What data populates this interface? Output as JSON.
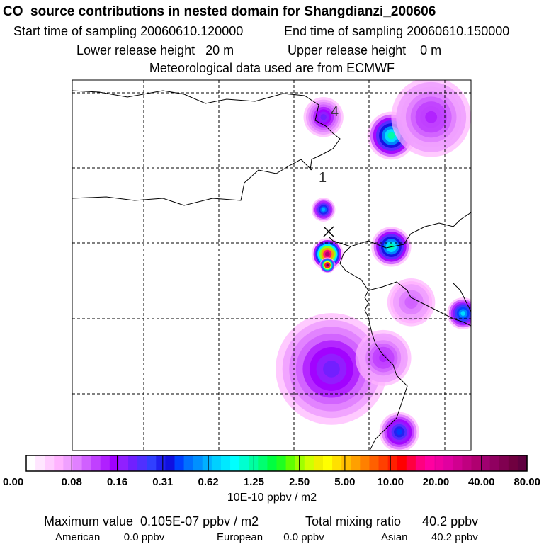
{
  "header": {
    "title": "CO  source contributions in nested domain for Shangdianzi_200606",
    "start_time": "Start time of sampling 20060610.120000",
    "end_time": "End time of sampling 20060610.150000",
    "lower_height": "Lower release height   20 m",
    "upper_height": "Upper release height    0 m",
    "met_source": "Meteorological data used are from ECMWF"
  },
  "chart_data": {
    "type": "heatmap",
    "title": "CO  source contributions in nested domain for Shangdianzi_200606",
    "map_labels": [
      "4",
      "1"
    ],
    "colorbar": {
      "tick_labels": [
        "0.00",
        "0.08",
        "0.16",
        "0.31",
        "0.62",
        "1.25",
        "2.50",
        "5.00",
        "10.00",
        "20.00",
        "40.00",
        "80.00"
      ],
      "units": "10E-10 ppbv / m2",
      "colors": [
        "#ffffff",
        "#ffe6ff",
        "#ffccff",
        "#ffb3ff",
        "#f0a0ff",
        "#e080ff",
        "#d060ff",
        "#c040ff",
        "#b020ff",
        "#a000ff",
        "#9020ff",
        "#7020ff",
        "#5030ff",
        "#3040ff",
        "#2020f0",
        "#1010e0",
        "#0040ff",
        "#0070ff",
        "#0090ff",
        "#00b0ff",
        "#00d0ff",
        "#00e8ff",
        "#00ffff",
        "#00ffd0",
        "#00ffa0",
        "#00ff70",
        "#00ff40",
        "#20ff20",
        "#60ff00",
        "#a0ff00",
        "#d0ff00",
        "#f0f000",
        "#ffff00",
        "#ffe000",
        "#ffc000",
        "#ffa000",
        "#ff8000",
        "#ff6000",
        "#ff4000",
        "#ff2000",
        "#ff0000",
        "#ff0040",
        "#ff0080",
        "#ff00a0",
        "#f000a0",
        "#e000a0",
        "#d00090",
        "#c00080",
        "#b00070",
        "#a00070",
        "#900060",
        "#800050",
        "#700040",
        "#600040"
      ]
    },
    "plumes": [
      {
        "x": 0.63,
        "y": 0.1,
        "r": 0.05,
        "level": 0.2
      },
      {
        "x": 0.63,
        "y": 0.35,
        "r": 0.03,
        "level": 0.35
      },
      {
        "x": 0.64,
        "y": 0.47,
        "r": 0.04,
        "level": 0.9
      },
      {
        "x": 0.64,
        "y": 0.5,
        "r": 0.02,
        "level": 1.0
      },
      {
        "x": 0.8,
        "y": 0.15,
        "r": 0.06,
        "level": 0.45
      },
      {
        "x": 0.9,
        "y": 0.1,
        "r": 0.1,
        "level": 0.15
      },
      {
        "x": 0.8,
        "y": 0.45,
        "r": 0.05,
        "level": 0.45
      },
      {
        "x": 0.98,
        "y": 0.63,
        "r": 0.04,
        "level": 0.4
      },
      {
        "x": 0.65,
        "y": 0.78,
        "r": 0.14,
        "level": 0.2
      },
      {
        "x": 0.78,
        "y": 0.75,
        "r": 0.07,
        "level": 0.15
      },
      {
        "x": 0.85,
        "y": 0.6,
        "r": 0.06,
        "level": 0.12
      },
      {
        "x": 0.82,
        "y": 0.95,
        "r": 0.05,
        "level": 0.3
      }
    ]
  },
  "footer": {
    "max_value": "Maximum value  0.105E-07 ppbv / m2",
    "total_mixing": "Total mixing ratio      40.2 ppbv",
    "american": "American        0.0 ppbv",
    "european": "European       0.0 ppbv",
    "asian": "Asian        40.2 ppbv"
  }
}
